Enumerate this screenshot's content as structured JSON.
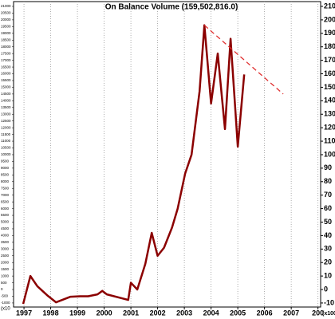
{
  "chart_data": {
    "type": "line",
    "title": "On Balance Volume (159,502,816.0)",
    "x": [
      1996.97,
      1997.24,
      1997.5,
      1997.9,
      1998.2,
      1998.73,
      1999.1,
      1999.4,
      1999.75,
      1999.93,
      2000.1,
      2000.9,
      2001.0,
      2001.24,
      2001.54,
      2001.78,
      2002.0,
      2002.24,
      2002.54,
      2002.75,
      2003.03,
      2003.27,
      2003.57,
      2003.75,
      2004.0,
      2004.25,
      2004.52,
      2004.73,
      2005.0,
      2005.24
    ],
    "series": [
      {
        "name": "On Balance Volume",
        "color": "#8b0000",
        "values": [
          -10.7,
          10,
          2.4,
          -4.8,
          -9.5,
          -5.4,
          -5,
          -5,
          -3.6,
          -1,
          -3.6,
          -7.7,
          5,
          0,
          19,
          42,
          25,
          31,
          46,
          60,
          86,
          100,
          147,
          196,
          138,
          175,
          119,
          186,
          106,
          159.5
        ]
      }
    ],
    "trendline": {
      "x": [
        2003.75,
        2006.7
      ],
      "y": [
        196,
        145
      ],
      "color": "#e03030"
    },
    "xlim": [
      1996.61,
      2008.1
    ],
    "xticks": [
      1997,
      1998,
      1999,
      2000,
      2001,
      2002,
      2003,
      2004,
      2005,
      2006,
      2007,
      {
        "value": 2008,
        "label": "200"
      }
    ],
    "ylim": [
      -13,
      210
    ],
    "yticks": [
      -10,
      0,
      10,
      20,
      30,
      40,
      50,
      60,
      70,
      80,
      90,
      100,
      110,
      120,
      130,
      140,
      150,
      160,
      170,
      180,
      190,
      200,
      210
    ],
    "y_unit": "(x1000",
    "y2lim": [
      -1300,
      21000
    ],
    "y2ticks": [
      -1000,
      -500,
      0,
      500,
      1000,
      1500,
      2000,
      2500,
      3000,
      3500,
      4000,
      4500,
      5000,
      5500,
      6000,
      6500,
      7000,
      7500,
      8000,
      8500,
      9000,
      9500,
      10000,
      10500,
      11000,
      11500,
      12000,
      12500,
      13000,
      13500,
      14000,
      14500,
      15000,
      15500,
      16000,
      16500,
      17000,
      17500,
      18000,
      18500,
      19000,
      19500,
      20000,
      20500,
      21000
    ],
    "y2_unit": "(x10",
    "grid": true
  }
}
